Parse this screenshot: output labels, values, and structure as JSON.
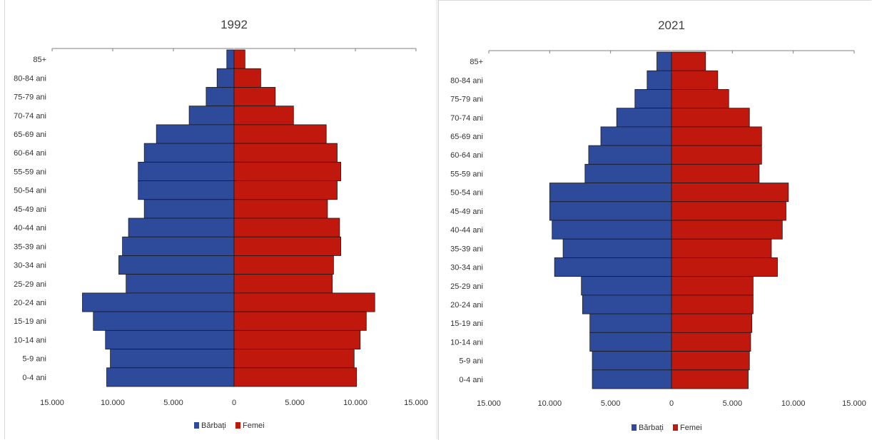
{
  "colors": {
    "male": "#2e4a9b",
    "female": "#c0180c",
    "bar_edge": "#1a1a1a",
    "axis": "#808080"
  },
  "chart_data": [
    {
      "type": "bar",
      "orientation": "horizontal",
      "title": "1992",
      "categories": [
        "85+",
        "80-84 ani",
        "75-79 ani",
        "70-74 ani",
        "65-69 ani",
        "60-64 ani",
        "55-59 ani",
        "50-54 ani",
        "45-49 ani",
        "40-44 ani",
        "35-39 ani",
        "30-34 ani",
        "25-29 ani",
        "20-24 ani",
        "15-19 ani",
        "10-14 ani",
        "5-9 ani",
        "0-4 ani"
      ],
      "series": [
        {
          "name": "Bărbați",
          "values": [
            600,
            1400,
            2300,
            3700,
            6400,
            7400,
            7900,
            7900,
            7400,
            8700,
            9200,
            9500,
            8900,
            12500,
            11600,
            10600,
            10200,
            10500
          ]
        },
        {
          "name": "Femei",
          "values": [
            900,
            2200,
            3400,
            4900,
            7600,
            8500,
            8800,
            8500,
            7700,
            8700,
            8800,
            8200,
            8100,
            11600,
            10900,
            10400,
            9900,
            10100
          ]
        }
      ],
      "xticks": [
        "15.000",
        "10.000",
        "5.000",
        "0",
        "5.000",
        "10.000",
        "15.000"
      ],
      "xlim": [
        -15000,
        15000
      ],
      "legend": "bottom"
    },
    {
      "type": "bar",
      "orientation": "horizontal",
      "title": "2021",
      "categories": [
        "85+",
        "80-84 ani",
        "75-79 ani",
        "70-74 ani",
        "65-69 ani",
        "60-64 ani",
        "55-59 ani",
        "50-54 ani",
        "45-49 ani",
        "40-44 ani",
        "35-39 ani",
        "30-34 ani",
        "25-29 ani",
        "20-24 ani",
        "15-19 ani",
        "10-14 ani",
        "5-9 ani",
        "0-4 ani"
      ],
      "series": [
        {
          "name": "Bărbați",
          "values": [
            1200,
            2000,
            3000,
            4500,
            5800,
            6800,
            7100,
            10000,
            10000,
            9800,
            8900,
            9600,
            7400,
            7300,
            6700,
            6700,
            6500,
            6500
          ]
        },
        {
          "name": "Femei",
          "values": [
            2800,
            3800,
            4700,
            6400,
            7400,
            7400,
            7200,
            9600,
            9400,
            9100,
            8200,
            8700,
            6700,
            6700,
            6600,
            6500,
            6400,
            6300
          ]
        }
      ],
      "xticks": [
        "15.000",
        "10.000",
        "5.000",
        "0",
        "5.000",
        "10.000",
        "15.000"
      ],
      "xlim": [
        -15000,
        15000
      ],
      "legend": "bottom"
    }
  ]
}
